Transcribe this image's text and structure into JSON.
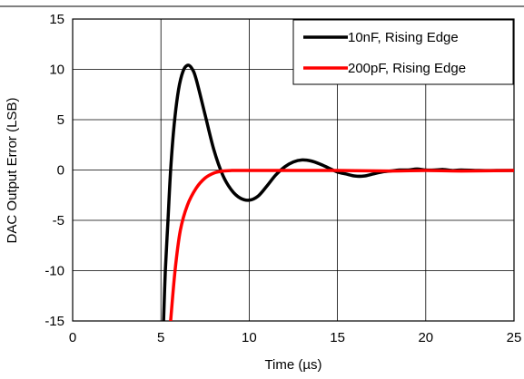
{
  "chart_data": {
    "type": "line",
    "title": "",
    "xlabel": "Time (µs)",
    "ylabel": "DAC Output Error (LSB)",
    "xlim": [
      0,
      25
    ],
    "ylim": [
      -15,
      15
    ],
    "x_ticks": [
      0,
      5,
      10,
      15,
      20,
      25
    ],
    "y_ticks": [
      -15,
      -10,
      -5,
      0,
      5,
      10,
      15
    ],
    "x_tick_labels": [
      "0",
      "5",
      "10",
      "15",
      "20",
      "25"
    ],
    "y_tick_labels": [
      "-15",
      "-10",
      "-5",
      "0",
      "5",
      "10",
      "15"
    ],
    "grid": true,
    "legend_position": "top-right",
    "series": [
      {
        "name": "10nF, Rising Edge",
        "color": "#000000",
        "points": [
          [
            5.15,
            -15.0
          ],
          [
            5.25,
            -10.0
          ],
          [
            5.4,
            -5.0
          ],
          [
            5.55,
            0.0
          ],
          [
            5.75,
            4.5
          ],
          [
            6.0,
            8.0
          ],
          [
            6.25,
            9.8
          ],
          [
            6.5,
            10.4
          ],
          [
            6.75,
            10.1
          ],
          [
            7.0,
            9.0
          ],
          [
            7.5,
            5.5
          ],
          [
            8.0,
            2.0
          ],
          [
            8.5,
            -0.5
          ],
          [
            9.0,
            -2.0
          ],
          [
            9.5,
            -2.8
          ],
          [
            10.0,
            -3.0
          ],
          [
            10.5,
            -2.6
          ],
          [
            11.0,
            -1.6
          ],
          [
            11.5,
            -0.5
          ],
          [
            12.0,
            0.3
          ],
          [
            12.5,
            0.8
          ],
          [
            13.0,
            1.0
          ],
          [
            13.5,
            0.9
          ],
          [
            14.0,
            0.6
          ],
          [
            14.5,
            0.2
          ],
          [
            15.0,
            -0.2
          ],
          [
            15.5,
            -0.4
          ],
          [
            16.0,
            -0.6
          ],
          [
            16.5,
            -0.6
          ],
          [
            17.0,
            -0.4
          ],
          [
            17.5,
            -0.2
          ],
          [
            18.0,
            -0.1
          ],
          [
            18.5,
            0.0
          ],
          [
            19.0,
            0.0
          ],
          [
            19.5,
            0.1
          ],
          [
            20.0,
            0.0
          ],
          [
            20.5,
            0.0
          ],
          [
            21.0,
            0.05
          ],
          [
            21.5,
            -0.05
          ],
          [
            22.0,
            0.0
          ],
          [
            23.0,
            -0.05
          ],
          [
            24.0,
            -0.05
          ],
          [
            25.0,
            -0.05
          ]
        ]
      },
      {
        "name": "200pF, Rising Edge",
        "color": "#ff0000",
        "points": [
          [
            5.55,
            -15.0
          ],
          [
            5.8,
            -10.0
          ],
          [
            6.1,
            -6.0
          ],
          [
            6.5,
            -3.5
          ],
          [
            7.0,
            -1.8
          ],
          [
            7.5,
            -0.8
          ],
          [
            8.0,
            -0.3
          ],
          [
            8.5,
            -0.1
          ],
          [
            9.0,
            -0.05
          ],
          [
            10.0,
            -0.05
          ],
          [
            12.0,
            -0.05
          ],
          [
            15.0,
            -0.05
          ],
          [
            18.0,
            -0.1
          ],
          [
            20.0,
            -0.05
          ],
          [
            22.0,
            -0.1
          ],
          [
            25.0,
            -0.05
          ]
        ]
      }
    ]
  }
}
